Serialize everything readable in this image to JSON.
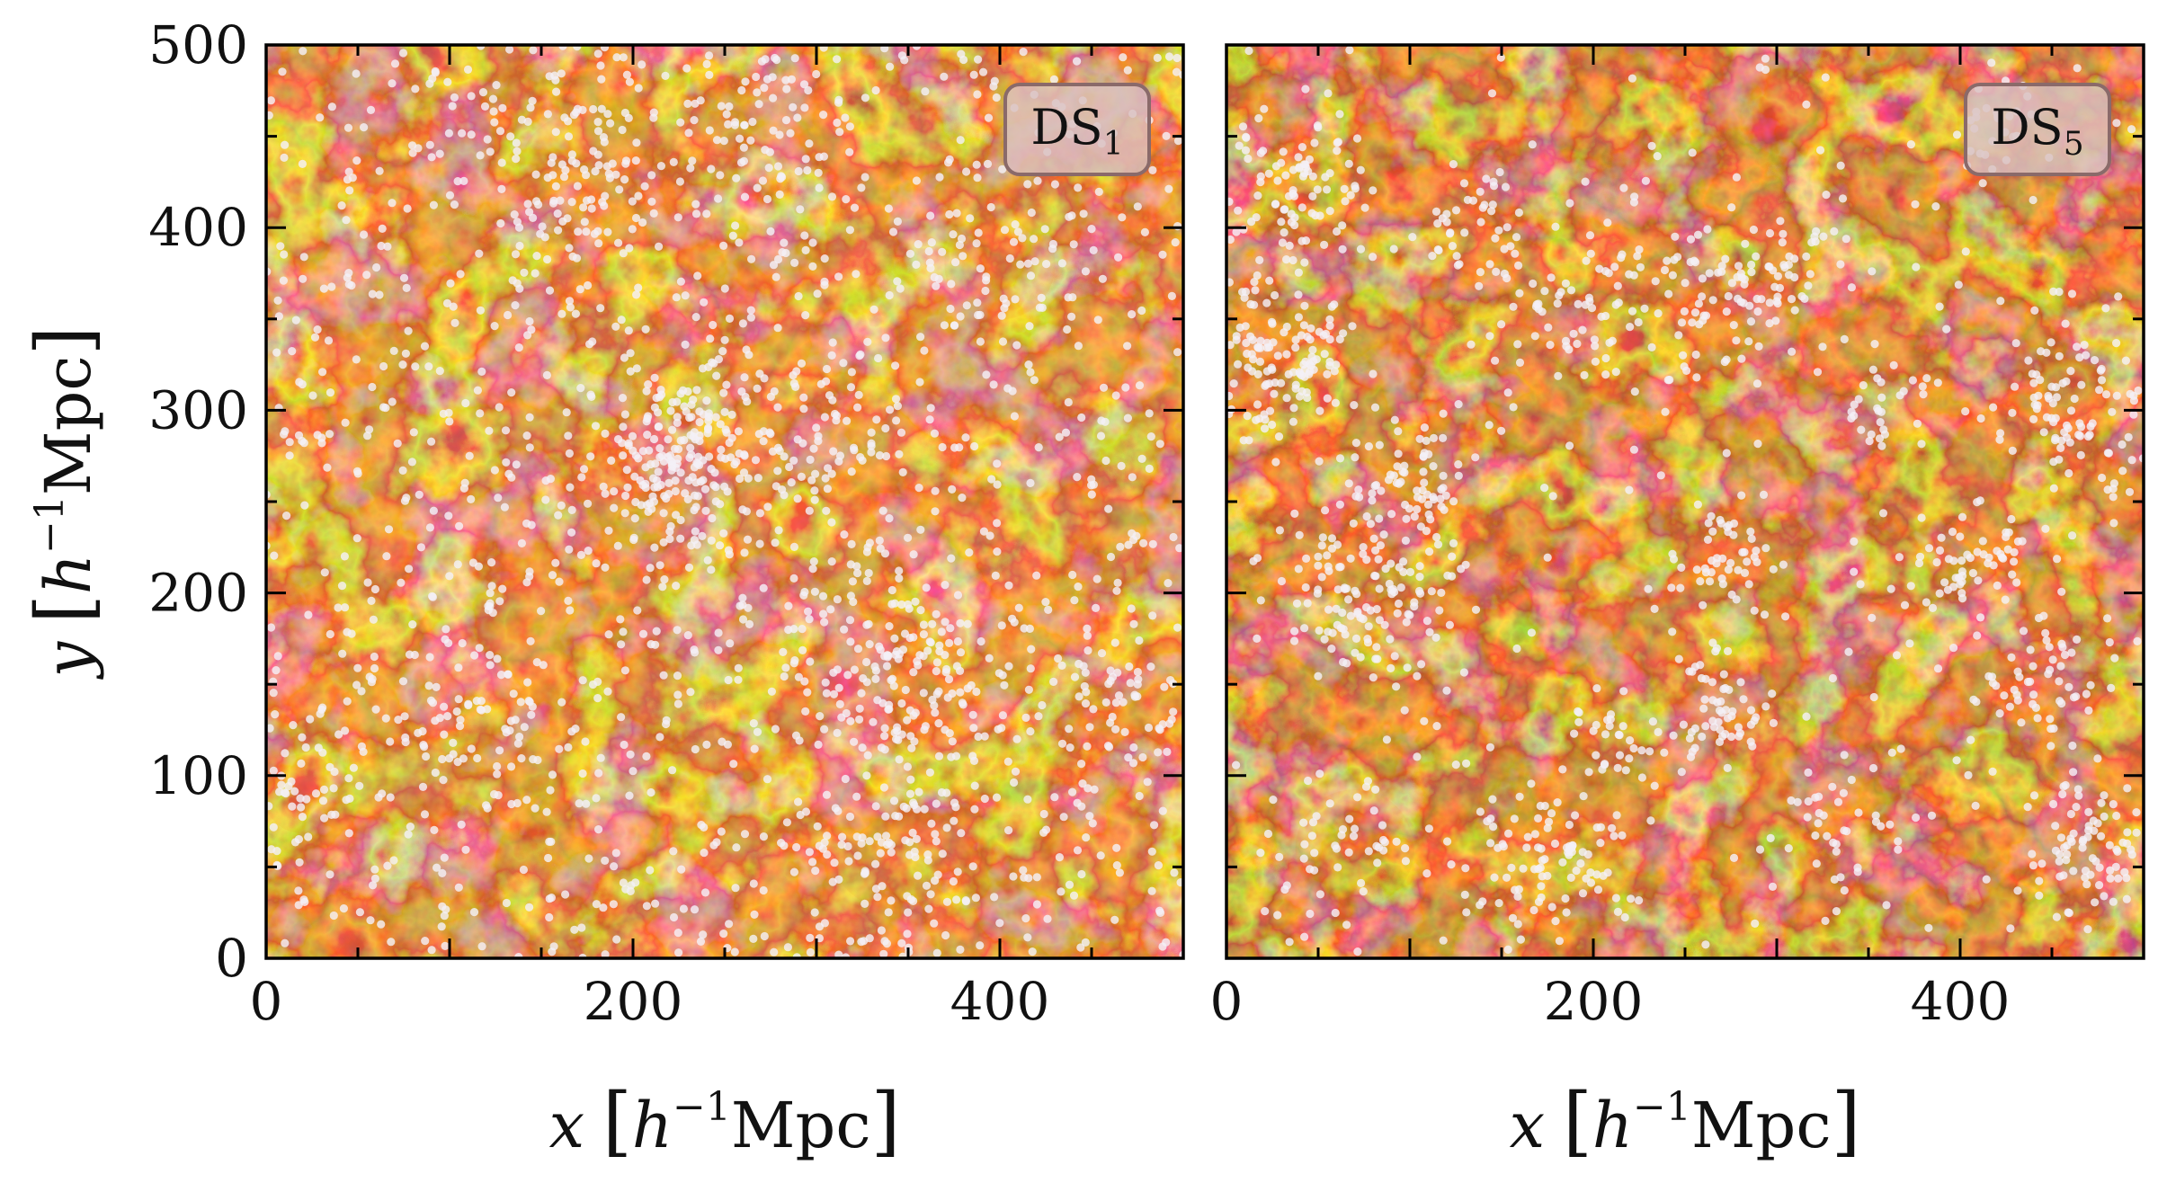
{
  "figure": {
    "colors": {
      "background_dark": "#5a0a02",
      "background_mid": "#8e1c06",
      "filament": "#f08a1c",
      "filament_bright": "#ffd36a",
      "point": "#f4f0f6",
      "badge_fill": "#d9c2c2",
      "badge_stroke": "#8a6a6a"
    }
  },
  "chart_data": [
    {
      "type": "scatter",
      "panel": "left",
      "label": "DS",
      "label_sub": "1",
      "xlabel_var": "x",
      "xlabel_unit_h": "h",
      "xlabel_unit_sup": "−1",
      "xlabel_unit_rest": "Mpc",
      "ylabel_var": "y",
      "ylabel_unit_h": "h",
      "ylabel_unit_sup": "−1",
      "ylabel_unit_rest": "Mpc",
      "xlim": [
        0,
        500
      ],
      "ylim": [
        0,
        500
      ],
      "x_ticks": [
        "0",
        "200",
        "400"
      ],
      "x_tick_values": [
        0,
        200,
        400
      ],
      "y_ticks": [
        "0",
        "100",
        "200",
        "300",
        "400",
        "500"
      ],
      "y_tick_values": [
        0,
        100,
        200,
        300,
        400,
        500
      ],
      "grid": false,
      "badge_position": "top-right",
      "point_distribution": "mostly-uniform",
      "clusters": [
        {
          "x": 225,
          "y": 270,
          "spread": 30,
          "n": 200
        },
        {
          "x": 345,
          "y": 160,
          "spread": 38,
          "n": 150
        },
        {
          "x": 110,
          "y": 130,
          "spread": 30,
          "n": 70
        },
        {
          "x": 170,
          "y": 430,
          "spread": 30,
          "n": 70
        },
        {
          "x": 270,
          "y": 450,
          "spread": 30,
          "n": 60
        },
        {
          "x": 340,
          "y": 60,
          "spread": 30,
          "n": 70
        },
        {
          "x": 310,
          "y": 280,
          "spread": 20,
          "n": 40
        },
        {
          "x": 400,
          "y": 380,
          "spread": 28,
          "n": 40
        },
        {
          "x": 20,
          "y": 90,
          "spread": 20,
          "n": 40
        },
        {
          "x": 460,
          "y": 150,
          "spread": 26,
          "n": 40
        }
      ],
      "uniform_points": 1200
    },
    {
      "type": "scatter",
      "panel": "right",
      "label": "DS",
      "label_sub": "5",
      "xlabel_var": "x",
      "xlabel_unit_h": "h",
      "xlabel_unit_sup": "−1",
      "xlabel_unit_rest": "Mpc",
      "xlim": [
        0,
        500
      ],
      "ylim": [
        0,
        500
      ],
      "x_ticks": [
        "0",
        "200",
        "400"
      ],
      "x_tick_values": [
        0,
        200,
        400
      ],
      "grid": false,
      "badge_position": "top-right",
      "point_distribution": "filamentary",
      "clusters": [
        {
          "x": 30,
          "y": 330,
          "spread": 25,
          "n": 130
        },
        {
          "x": 40,
          "y": 420,
          "spread": 25,
          "n": 90
        },
        {
          "x": 80,
          "y": 200,
          "spread": 28,
          "n": 130
        },
        {
          "x": 100,
          "y": 260,
          "spread": 22,
          "n": 70
        },
        {
          "x": 130,
          "y": 400,
          "spread": 18,
          "n": 40
        },
        {
          "x": 190,
          "y": 350,
          "spread": 28,
          "n": 60
        },
        {
          "x": 255,
          "y": 360,
          "spread": 28,
          "n": 80
        },
        {
          "x": 310,
          "y": 380,
          "spread": 20,
          "n": 40
        },
        {
          "x": 270,
          "y": 220,
          "spread": 18,
          "n": 50
        },
        {
          "x": 270,
          "y": 140,
          "spread": 20,
          "n": 60
        },
        {
          "x": 180,
          "y": 60,
          "spread": 30,
          "n": 100
        },
        {
          "x": 70,
          "y": 60,
          "spread": 30,
          "n": 60
        },
        {
          "x": 210,
          "y": 120,
          "spread": 15,
          "n": 30
        },
        {
          "x": 410,
          "y": 220,
          "spread": 22,
          "n": 60
        },
        {
          "x": 460,
          "y": 300,
          "spread": 26,
          "n": 90
        },
        {
          "x": 440,
          "y": 150,
          "spread": 20,
          "n": 50
        },
        {
          "x": 470,
          "y": 60,
          "spread": 25,
          "n": 90
        },
        {
          "x": 420,
          "y": 460,
          "spread": 20,
          "n": 30
        },
        {
          "x": 360,
          "y": 300,
          "spread": 18,
          "n": 30
        },
        {
          "x": 330,
          "y": 70,
          "spread": 25,
          "n": 40
        }
      ],
      "uniform_points": 180
    }
  ]
}
